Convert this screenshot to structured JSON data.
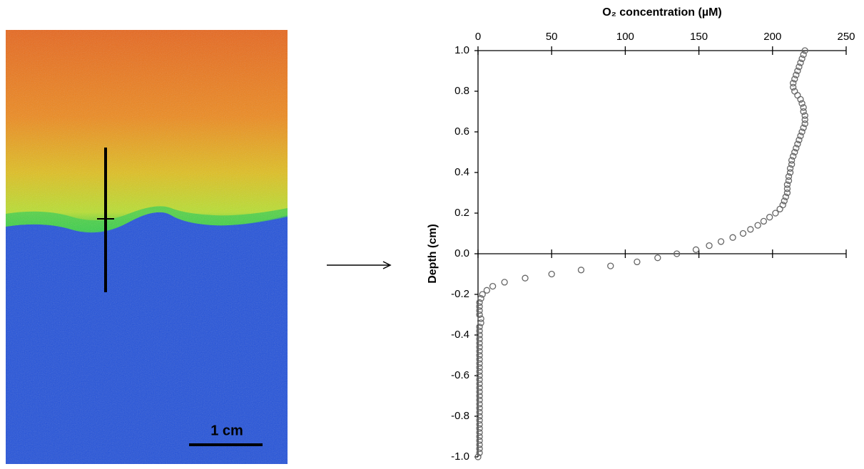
{
  "image": {
    "scale_label": "1 cm"
  },
  "chart_data": {
    "type": "scatter",
    "x_label": "O₂ concentration (µM)",
    "y_label": "Depth (cm)",
    "marker_color": "#666666",
    "xlim": [
      0,
      250
    ],
    "xticks": [
      0,
      50,
      100,
      150,
      200,
      250
    ],
    "ylim": [
      -1.0,
      1.0
    ],
    "yticks": [
      {
        "value": 1.0,
        "label": "1.0"
      },
      0.8,
      0.6,
      0.4,
      0.2,
      {
        "value": 0.0,
        "label": "0.0"
      },
      -0.2,
      -0.4,
      -0.6,
      -0.8,
      {
        "value": -1.0,
        "label": "-1.0"
      }
    ],
    "x": [
      222,
      221,
      220,
      219,
      218,
      217,
      216,
      215,
      214,
      214,
      215,
      217,
      219,
      220,
      221,
      221,
      222,
      222,
      222,
      221,
      220,
      219,
      218,
      217,
      216,
      215,
      214,
      213,
      213,
      212,
      212,
      211,
      211,
      210,
      210,
      210,
      209,
      208,
      207,
      205,
      202,
      198,
      194,
      190,
      185,
      180,
      173,
      165,
      157,
      148,
      135,
      122,
      108,
      90,
      70,
      50,
      32,
      18,
      10,
      6,
      3,
      2,
      1,
      1,
      1,
      1,
      2,
      2,
      1,
      1,
      1,
      1,
      1,
      1,
      1,
      1,
      1,
      1,
      1,
      1,
      1,
      1,
      1,
      1,
      1,
      1,
      1,
      1,
      1,
      1,
      1,
      1,
      1,
      1,
      1,
      1,
      1,
      1,
      1,
      1,
      0
    ],
    "values": [
      1.0,
      0.98,
      0.96,
      0.94,
      0.92,
      0.9,
      0.88,
      0.86,
      0.84,
      0.82,
      0.8,
      0.78,
      0.76,
      0.74,
      0.72,
      0.7,
      0.68,
      0.66,
      0.64,
      0.62,
      0.6,
      0.58,
      0.56,
      0.54,
      0.52,
      0.5,
      0.48,
      0.46,
      0.44,
      0.42,
      0.4,
      0.38,
      0.36,
      0.34,
      0.32,
      0.3,
      0.28,
      0.26,
      0.24,
      0.22,
      0.2,
      0.18,
      0.16,
      0.14,
      0.12,
      0.1,
      0.08,
      0.06,
      0.04,
      0.02,
      0.0,
      -0.02,
      -0.04,
      -0.06,
      -0.08,
      -0.1,
      -0.12,
      -0.14,
      -0.16,
      -0.18,
      -0.2,
      -0.22,
      -0.24,
      -0.26,
      -0.28,
      -0.3,
      -0.32,
      -0.34,
      -0.36,
      -0.38,
      -0.4,
      -0.42,
      -0.44,
      -0.46,
      -0.48,
      -0.5,
      -0.52,
      -0.54,
      -0.56,
      -0.58,
      -0.6,
      -0.62,
      -0.64,
      -0.66,
      -0.68,
      -0.7,
      -0.72,
      -0.74,
      -0.76,
      -0.78,
      -0.8,
      -0.82,
      -0.84,
      -0.86,
      -0.88,
      -0.9,
      -0.92,
      -0.94,
      -0.96,
      -0.98,
      -1.0
    ]
  }
}
